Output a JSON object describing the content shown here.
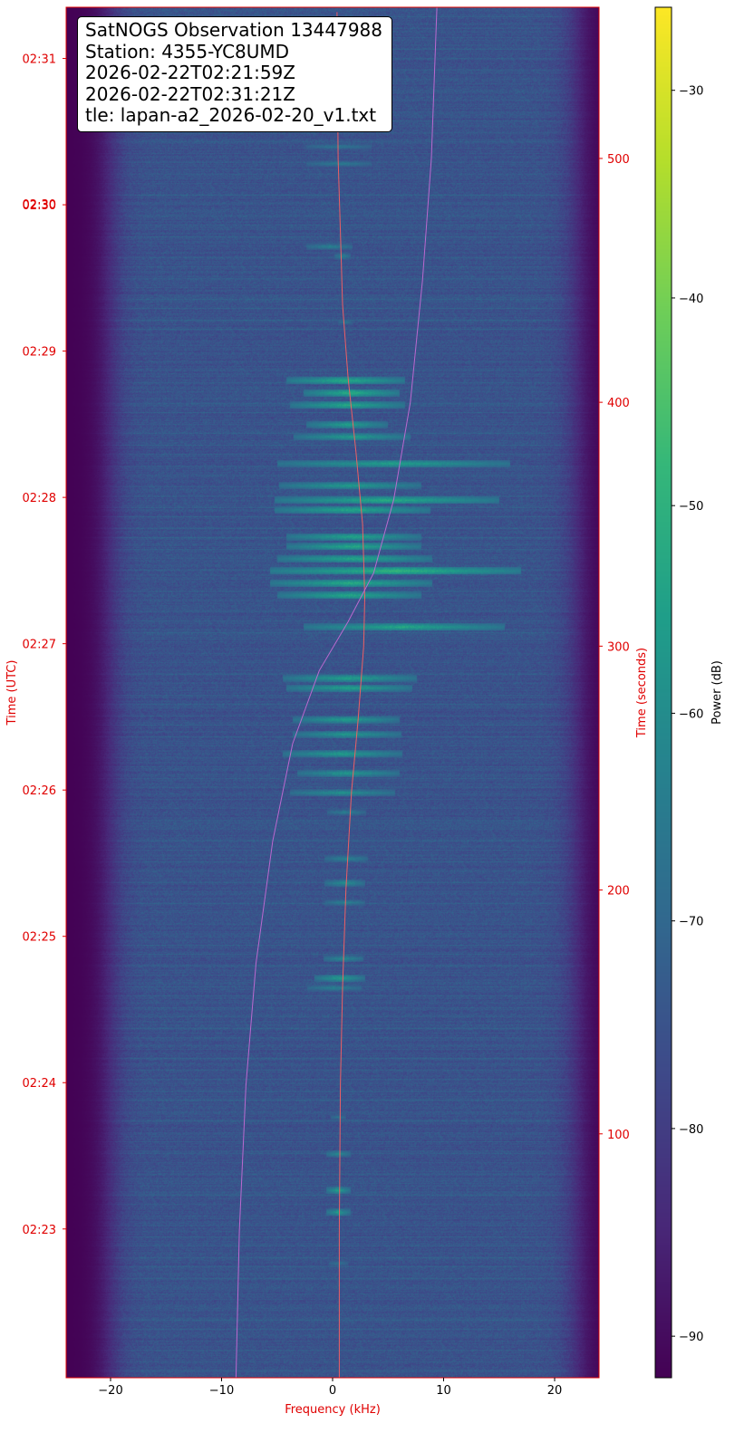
{
  "chart_data": {
    "type": "heatmap",
    "subtype": "waterfall-spectrogram",
    "annotation": [
      "SatNOGS Observation 13447988",
      "Station: 4355-YC8UMD",
      "2026-02-22T02:21:59Z",
      "2026-02-22T02:31:21Z",
      "tle: lapan-a2_2026-02-20_v1.txt"
    ],
    "xlabel": "Frequency (kHz)",
    "xlim": [
      -24,
      24
    ],
    "xticks": [
      -20,
      -10,
      0,
      10,
      20
    ],
    "xtick_labels": [
      "−20",
      "−10",
      "0",
      "10",
      "20"
    ],
    "ylabel_left": "Time (UTC)",
    "ylabel_right": "Time (seconds)",
    "ylim_seconds": [
      0,
      562
    ],
    "utc_ticks": [
      {
        "label": "02:23",
        "seconds": 61
      },
      {
        "label": "02:24",
        "seconds": 121
      },
      {
        "label": "02:25",
        "seconds": 181
      },
      {
        "label": "02:26",
        "seconds": 241
      },
      {
        "label": "02:27",
        "seconds": 301
      },
      {
        "label": "02:28",
        "seconds": 361
      },
      {
        "label": "02:29",
        "seconds": 421
      },
      {
        "label": "02:30",
        "seconds": 481
      },
      {
        "label": "02:31",
        "seconds": 541
      }
    ],
    "extra_utc_label": {
      "label": "02:30",
      "seconds": 481
    },
    "seconds_ticks": [
      100,
      200,
      300,
      400,
      500
    ],
    "colorbar": {
      "label": "Power (dB)",
      "colormap": "viridis",
      "range": [
        -92,
        -26
      ],
      "ticks": [
        -30,
        -40,
        -50,
        -60,
        -70,
        -80,
        -90
      ],
      "tick_labels": [
        "−30",
        "−40",
        "−50",
        "−60",
        "−70",
        "−80",
        "−90"
      ]
    },
    "grid": false,
    "noise_floor_db": -75,
    "filter_edge_khz": [
      -20,
      22
    ],
    "doppler_tracks": [
      {
        "color": "#ff6060",
        "points": [
          [
            0.6,
            0
          ],
          [
            0.6,
            60
          ],
          [
            0.7,
            120
          ],
          [
            0.9,
            160
          ],
          [
            1.2,
            200
          ],
          [
            1.7,
            240
          ],
          [
            2.3,
            270
          ],
          [
            2.8,
            300
          ],
          [
            2.9,
            320
          ],
          [
            2.7,
            350
          ],
          [
            2.1,
            380
          ],
          [
            1.4,
            410
          ],
          [
            0.9,
            440
          ],
          [
            0.7,
            470
          ],
          [
            0.5,
            500
          ],
          [
            0.4,
            560
          ]
        ]
      },
      {
        "color": "#c96bd6",
        "points": [
          [
            -8.7,
            0
          ],
          [
            -8.4,
            60
          ],
          [
            -7.8,
            120
          ],
          [
            -6.9,
            170
          ],
          [
            -5.4,
            220
          ],
          [
            -3.6,
            260
          ],
          [
            -1.2,
            290
          ],
          [
            1.4,
            310
          ],
          [
            3.7,
            330
          ],
          [
            5.5,
            360
          ],
          [
            7.0,
            400
          ],
          [
            8.1,
            450
          ],
          [
            8.9,
            500
          ],
          [
            9.4,
            562
          ]
        ]
      }
    ],
    "signal_bursts": [
      {
        "t": 47,
        "f0": -0.3,
        "f1": 1.4,
        "db": -66
      },
      {
        "t": 68,
        "f0": -0.6,
        "f1": 1.6,
        "db": -56
      },
      {
        "t": 77,
        "f0": -0.6,
        "f1": 1.6,
        "db": -55
      },
      {
        "t": 92,
        "f0": -0.6,
        "f1": 1.6,
        "db": -60
      },
      {
        "t": 107,
        "f0": -0.2,
        "f1": 1.2,
        "db": -66
      },
      {
        "t": 160,
        "f0": -2.3,
        "f1": 2.6,
        "db": -62
      },
      {
        "t": 164,
        "f0": -1.6,
        "f1": 2.9,
        "db": -55
      },
      {
        "t": 172,
        "f0": -0.8,
        "f1": 2.8,
        "db": -60
      },
      {
        "t": 195,
        "f0": -0.7,
        "f1": 2.9,
        "db": -62
      },
      {
        "t": 203,
        "f0": -0.7,
        "f1": 2.9,
        "db": -58
      },
      {
        "t": 213,
        "f0": -0.7,
        "f1": 3.2,
        "db": -61
      },
      {
        "t": 232,
        "f0": -0.5,
        "f1": 3.0,
        "db": -63
      },
      {
        "t": 240,
        "f0": -3.8,
        "f1": 5.6,
        "db": -58
      },
      {
        "t": 248,
        "f0": -3.2,
        "f1": 6.0,
        "db": -56
      },
      {
        "t": 256,
        "f0": -4.5,
        "f1": 6.3,
        "db": -55
      },
      {
        "t": 264,
        "f0": -3.6,
        "f1": 6.2,
        "db": -56
      },
      {
        "t": 270,
        "f0": -3.6,
        "f1": 6.0,
        "db": -55
      },
      {
        "t": 283,
        "f0": -4.2,
        "f1": 7.2,
        "db": -54
      },
      {
        "t": 287,
        "f0": -4.5,
        "f1": 7.6,
        "db": -54
      },
      {
        "t": 308,
        "f0": -2.6,
        "f1": 15.5,
        "db": -52
      },
      {
        "t": 321,
        "f0": -5.0,
        "f1": 8.0,
        "db": -52
      },
      {
        "t": 326,
        "f0": -5.6,
        "f1": 9.0,
        "db": -51
      },
      {
        "t": 331,
        "f0": -5.6,
        "f1": 17.0,
        "db": -48
      },
      {
        "t": 336,
        "f0": -5.0,
        "f1": 9.0,
        "db": -52
      },
      {
        "t": 341,
        "f0": -4.2,
        "f1": 8.0,
        "db": -52
      },
      {
        "t": 345,
        "f0": -4.2,
        "f1": 8.0,
        "db": -53
      },
      {
        "t": 356,
        "f0": -5.2,
        "f1": 8.8,
        "db": -52
      },
      {
        "t": 360,
        "f0": -5.2,
        "f1": 15.0,
        "db": -51
      },
      {
        "t": 366,
        "f0": -4.8,
        "f1": 8.0,
        "db": -55
      },
      {
        "t": 375,
        "f0": -5.0,
        "f1": 16.0,
        "db": -54
      },
      {
        "t": 386,
        "f0": -3.5,
        "f1": 7.0,
        "db": -55
      },
      {
        "t": 391,
        "f0": -2.4,
        "f1": 5.0,
        "db": -54
      },
      {
        "t": 399,
        "f0": -3.8,
        "f1": 6.5,
        "db": -52
      },
      {
        "t": 404,
        "f0": -2.6,
        "f1": 6.0,
        "db": -50
      },
      {
        "t": 409,
        "f0": -4.2,
        "f1": 6.5,
        "db": -51
      },
      {
        "t": 433,
        "f0": 0.5,
        "f1": 1.8,
        "db": -66
      },
      {
        "t": 460,
        "f0": 0.2,
        "f1": 1.6,
        "db": -62
      },
      {
        "t": 464,
        "f0": -2.4,
        "f1": 1.8,
        "db": -62
      },
      {
        "t": 498,
        "f0": -2.4,
        "f1": 3.5,
        "db": -64
      },
      {
        "t": 505,
        "f0": -2.4,
        "f1": 3.5,
        "db": -65
      }
    ]
  }
}
